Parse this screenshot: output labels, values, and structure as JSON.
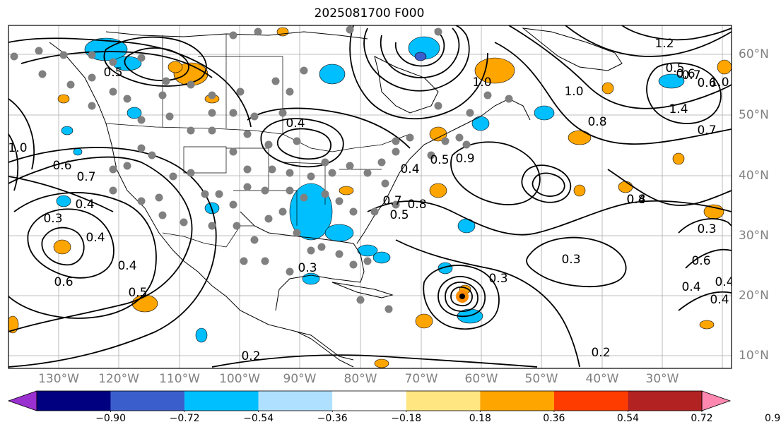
{
  "title": "2025081700 F000",
  "lon_labels": [
    "130°W",
    "120°W",
    "110°W",
    "100°W",
    "90°W",
    "80°W",
    "70°W",
    "60°W",
    "50°W",
    "40°W",
    "30°W"
  ],
  "lat_labels": [
    "60°N",
    "50°N",
    "40°N",
    "30°N",
    "20°N",
    "10°N"
  ],
  "contour_labels": [
    "0.6",
    "0.5",
    "0.4",
    "1.0",
    "0.7",
    "0.6",
    "0.4",
    "0.3",
    "0.5",
    "0.4",
    "1.0",
    "0.8",
    "0.7",
    "0.6",
    "0.4",
    "0.3",
    "1.0",
    "1.2",
    "1.4",
    "1.0",
    "0.9",
    "0.5",
    "0.8",
    "0.7",
    "0.8",
    "0.6",
    "0.4",
    "0.4",
    "0.3",
    "0.4",
    "0.5",
    "0.7",
    "0.6",
    "0.3",
    "0.2",
    "0.3",
    "0.4",
    "0.5",
    "0.4",
    "0.2"
  ],
  "colorbar": {
    "ticks": [
      "−0.90",
      "−0.72",
      "−0.54",
      "−0.36",
      "−0.18",
      "0.18",
      "0.36",
      "0.54",
      "0.72",
      "0.90"
    ],
    "colors": [
      "#9b30d0",
      "#000080",
      "#3a5fcd",
      "#00bfff",
      "#b0e0ff",
      "#ffffff",
      "#ffe680",
      "#ffa500",
      "#ff3c00",
      "#b22222",
      "#ff88b0"
    ]
  },
  "colors": {
    "positive_shade": "#ffa500",
    "negative_shade": "#00bfff",
    "station": "#808080"
  }
}
